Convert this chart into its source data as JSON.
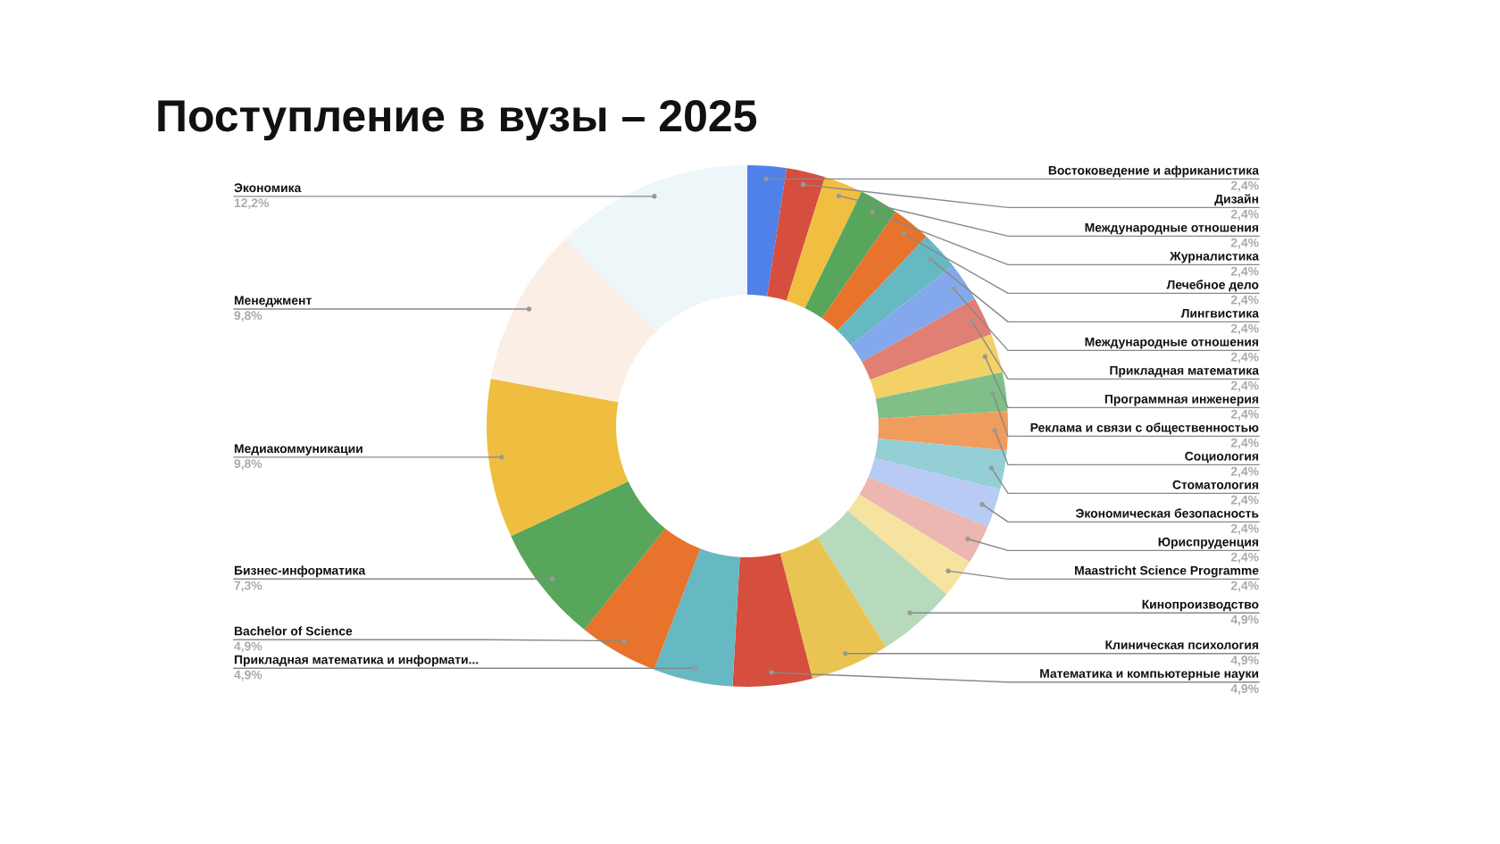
{
  "chart_data": {
    "type": "donut",
    "title": "Поступление в вузы – 2025",
    "legend": false,
    "categories": [
      "Востоковедение и африканистика",
      "Дизайн",
      "Международные отношения",
      "Журналистика",
      "Лечебное дело",
      "Лингвистика",
      "Международные отношения",
      "Прикладная математика",
      "Программная инженерия",
      "Реклама и связи с общественностью",
      "Социология",
      "Стоматология",
      "Экономическая безопасность",
      "Юриспруденция",
      "Maastricht Science Programme",
      "Кинопроизводство",
      "Клиническая психология",
      "Математика и компьютерные науки",
      "Прикладная математика и информати...",
      "Bachelor of Science",
      "Бизнес-информатика",
      "Медиакоммуникации",
      "Менеджмент",
      "Экономика"
    ],
    "values": [
      2.4,
      2.4,
      2.4,
      2.4,
      2.4,
      2.4,
      2.4,
      2.4,
      2.4,
      2.4,
      2.4,
      2.4,
      2.4,
      2.4,
      2.4,
      4.9,
      4.9,
      4.9,
      4.9,
      4.9,
      7.3,
      9.8,
      9.8,
      12.2
    ],
    "value_labels": [
      "2,4%",
      "2,4%",
      "2,4%",
      "2,4%",
      "2,4%",
      "2,4%",
      "2,4%",
      "2,4%",
      "2,4%",
      "2,4%",
      "2,4%",
      "2,4%",
      "2,4%",
      "2,4%",
      "2,4%",
      "4,9%",
      "4,9%",
      "4,9%",
      "4,9%",
      "4,9%",
      "7,3%",
      "9,8%",
      "9,8%",
      "12,2%"
    ],
    "colors": [
      "#4f81e8",
      "#d54e3e",
      "#f0bf41",
      "#57a65b",
      "#e8732c",
      "#66b8c3",
      "#84a8ec",
      "#e07f73",
      "#f3d166",
      "#80bf87",
      "#f09c5c",
      "#94cfd5",
      "#b8cbf5",
      "#ebb7b0",
      "#f6e3a0",
      "#b8dabc",
      "#e9c452",
      "#d54e3e",
      "#66b8c3",
      "#e8732c",
      "#58a65b",
      "#efbd40",
      "#fbefe5",
      "#edf6f8"
    ]
  }
}
